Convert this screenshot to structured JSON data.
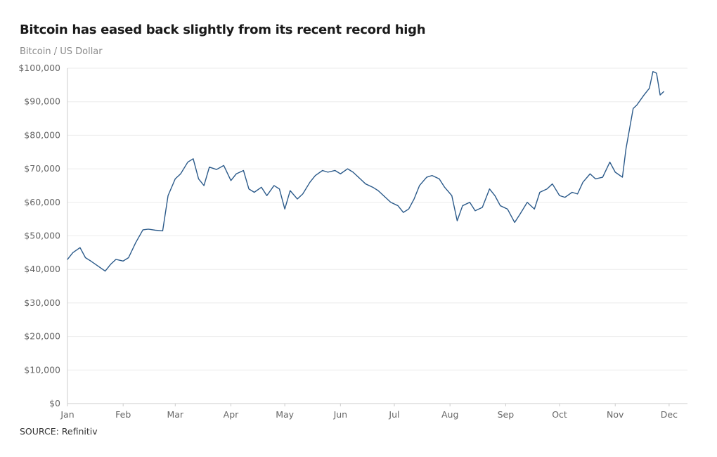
{
  "chart_data": {
    "type": "line",
    "title": "Bitcoin has eased back slightly from its recent record high",
    "subtitle": "Bitcoin / US Dollar",
    "source": "SOURCE: Refinitiv",
    "ylim": [
      0,
      100000
    ],
    "y_ticks": [
      {
        "value": 0,
        "label": "$0"
      },
      {
        "value": 10000,
        "label": "$10,000"
      },
      {
        "value": 20000,
        "label": "$20,000"
      },
      {
        "value": 30000,
        "label": "$30,000"
      },
      {
        "value": 40000,
        "label": "$40,000"
      },
      {
        "value": 50000,
        "label": "$50,000"
      },
      {
        "value": 60000,
        "label": "$60,000"
      },
      {
        "value": 70000,
        "label": "$70,000"
      },
      {
        "value": 80000,
        "label": "$80,000"
      },
      {
        "value": 90000,
        "label": "$90,000"
      },
      {
        "value": 100000,
        "label": "$100,000"
      }
    ],
    "x_ticks": [
      "Jan",
      "Feb",
      "Mar",
      "Apr",
      "May",
      "Jun",
      "Jul",
      "Aug",
      "Sep",
      "Oct",
      "Nov",
      "Dec"
    ],
    "grid": true,
    "colors": {
      "line": "#2b5a8a",
      "grid": "#ebebeb",
      "axis": "#cccccc"
    },
    "series": [
      {
        "x": [
          "2024-01-01",
          "2024-01-04",
          "2024-01-08",
          "2024-01-11",
          "2024-01-14",
          "2024-01-18",
          "2024-01-22",
          "2024-01-25",
          "2024-01-28",
          "2024-02-01",
          "2024-02-04",
          "2024-02-08",
          "2024-02-12",
          "2024-02-15",
          "2024-02-19",
          "2024-02-23",
          "2024-02-26",
          "2024-03-01",
          "2024-03-04",
          "2024-03-08",
          "2024-03-11",
          "2024-03-14",
          "2024-03-17",
          "2024-03-20",
          "2024-03-24",
          "2024-03-28",
          "2024-04-01",
          "2024-04-04",
          "2024-04-08",
          "2024-04-11",
          "2024-04-14",
          "2024-04-18",
          "2024-04-21",
          "2024-04-25",
          "2024-04-28",
          "2024-05-01",
          "2024-05-04",
          "2024-05-08",
          "2024-05-11",
          "2024-05-15",
          "2024-05-18",
          "2024-05-22",
          "2024-05-25",
          "2024-05-29",
          "2024-06-01",
          "2024-06-05",
          "2024-06-08",
          "2024-06-12",
          "2024-06-15",
          "2024-06-19",
          "2024-06-22",
          "2024-06-26",
          "2024-06-29",
          "2024-07-03",
          "2024-07-06",
          "2024-07-09",
          "2024-07-12",
          "2024-07-15",
          "2024-07-19",
          "2024-07-22",
          "2024-07-26",
          "2024-07-29",
          "2024-08-02",
          "2024-08-05",
          "2024-08-08",
          "2024-08-12",
          "2024-08-15",
          "2024-08-19",
          "2024-08-23",
          "2024-08-26",
          "2024-08-29",
          "2024-09-02",
          "2024-09-06",
          "2024-09-09",
          "2024-09-13",
          "2024-09-17",
          "2024-09-20",
          "2024-09-24",
          "2024-09-27",
          "2024-10-01",
          "2024-10-04",
          "2024-10-08",
          "2024-10-11",
          "2024-10-14",
          "2024-10-18",
          "2024-10-21",
          "2024-10-25",
          "2024-10-29",
          "2024-11-01",
          "2024-11-05",
          "2024-11-07",
          "2024-11-11",
          "2024-11-13",
          "2024-11-17",
          "2024-11-20",
          "2024-11-22",
          "2024-11-24",
          "2024-11-26",
          "2024-11-28"
        ],
        "values": [
          43000,
          45000,
          46500,
          43500,
          42500,
          41000,
          39500,
          41500,
          43000,
          42500,
          43500,
          48000,
          51800,
          52000,
          51700,
          51500,
          62000,
          67000,
          68500,
          72000,
          73000,
          67000,
          65000,
          70500,
          69800,
          71000,
          66500,
          68500,
          69500,
          64000,
          63000,
          64500,
          62000,
          65000,
          64000,
          58000,
          63500,
          61000,
          62500,
          66000,
          68000,
          69500,
          69000,
          69500,
          68500,
          70000,
          69000,
          67000,
          65500,
          64500,
          63500,
          61500,
          60000,
          59000,
          57000,
          58000,
          61000,
          65000,
          67500,
          68000,
          67000,
          64500,
          62000,
          54500,
          59000,
          60000,
          57500,
          58500,
          64000,
          62000,
          59000,
          58000,
          54000,
          56500,
          60000,
          58000,
          63000,
          64000,
          65500,
          62000,
          61500,
          63000,
          62500,
          66000,
          68500,
          67000,
          67500,
          72000,
          69000,
          67500,
          76000,
          88000,
          89000,
          92000,
          94000,
          99000,
          98500,
          92000,
          93000
        ]
      }
    ]
  }
}
